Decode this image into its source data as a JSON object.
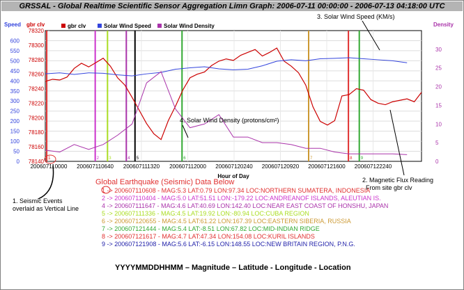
{
  "title": "GRSSAL - Global Realtime Scientific Sensor Aggregation Limn Graph: 2006-07-11 00:00:00 - 2006-07-13 04:18:00 UTC",
  "colors": {
    "background": "#ffffff",
    "titlebar": "#b4b4b4",
    "gbr": "#cc0000",
    "speed": "#3344dd",
    "density": "#aa33aa",
    "annotation_red": "#e03030"
  },
  "chart_data": {
    "type": "line",
    "xlabel": "Hour of Day",
    "x_ticks": [
      "200607110000",
      "200607110640",
      "200607111320",
      "200607112000",
      "200607120240",
      "200607120920",
      "200607121600",
      "200607122240"
    ],
    "axes": {
      "speed": {
        "label": "Speed",
        "ylim": [
          0,
          650
        ],
        "ticks": [
          "0",
          "50",
          "100",
          "150",
          "200",
          "250",
          "300",
          "350",
          "400",
          "450",
          "500",
          "550",
          "600"
        ]
      },
      "gbr": {
        "label": "gbr clv",
        "ylim": [
          78140,
          78320
        ],
        "ticks": [
          "78140",
          "78160",
          "78180",
          "78200",
          "78220",
          "78240",
          "78260",
          "78280",
          "78300",
          "78320"
        ]
      },
      "density": {
        "label": "Density",
        "ylim": [
          0,
          35
        ],
        "ticks": [
          "0",
          "5",
          "10",
          "15",
          "20",
          "25",
          "30"
        ]
      }
    },
    "legend": [
      "gbr clv",
      "Solar Wind Speed",
      "Solar Wind Density"
    ],
    "series": [
      {
        "name": "gbr clv",
        "axis": "gbr",
        "x": [
          0,
          1,
          2,
          3,
          4,
          5,
          6,
          7,
          8,
          9,
          10,
          11,
          12,
          13,
          14,
          15,
          16,
          17,
          18,
          19,
          20,
          21,
          22,
          23,
          24,
          25,
          26,
          27,
          28,
          29,
          30,
          31,
          32,
          33,
          34,
          35,
          36,
          37,
          38,
          39,
          40,
          41,
          42,
          43,
          44,
          45,
          46,
          47,
          48,
          49,
          50,
          51,
          52
        ],
        "values": [
          78250,
          78253,
          78252,
          78256,
          78268,
          78275,
          78270,
          78276,
          78282,
          78271,
          78255,
          78245,
          78228,
          78210,
          78192,
          78178,
          78170,
          78196,
          78216,
          78238,
          78255,
          78260,
          78263,
          78272,
          78278,
          78281,
          78279,
          78286,
          78290,
          78294,
          78285,
          78290,
          78296,
          78278,
          78271,
          78262,
          78245,
          78215,
          78195,
          78190,
          78196,
          78230,
          78232,
          78240,
          78238,
          78225,
          78220,
          78218,
          78222,
          78224,
          78226,
          78222,
          78235
        ]
      },
      {
        "name": "Solar Wind Speed",
        "axis": "speed",
        "x": [
          0,
          2,
          4,
          6,
          8,
          10,
          12,
          14,
          16,
          18,
          20,
          22,
          24,
          26,
          28,
          30,
          32,
          34,
          36,
          38,
          40,
          42,
          44,
          46,
          48,
          50
        ],
        "values": [
          435,
          440,
          432,
          440,
          438,
          430,
          425,
          435,
          442,
          458,
          465,
          470,
          460,
          455,
          458,
          475,
          498,
          505,
          500,
          510,
          512,
          515,
          510,
          505,
          500,
          490
        ]
      },
      {
        "name": "Solar Wind Density",
        "axis": "density",
        "x": [
          0,
          2,
          4,
          6,
          8,
          10,
          12,
          14,
          16,
          18,
          20,
          22,
          24,
          26,
          28,
          30,
          32,
          34,
          36,
          38,
          40,
          42,
          44,
          46,
          48,
          50
        ],
        "values": [
          3,
          2.5,
          4.5,
          3.2,
          4.5,
          7,
          10,
          21,
          24,
          14,
          9,
          10,
          12.5,
          6.5,
          6.5,
          5,
          5,
          4.5,
          3.5,
          3.5,
          2.5,
          2,
          2,
          2,
          2,
          1.8
        ]
      }
    ],
    "seismic_events": [
      {
        "x": 0.2,
        "id": "1",
        "color": "#e03030"
      },
      {
        "x": 6.9,
        "id": "2",
        "color": "#cc33cc"
      },
      {
        "x": 8.6,
        "id": "3",
        "color": "#aadd22"
      },
      {
        "x": 11.2,
        "id": "4",
        "color": "#aa33aa"
      },
      {
        "x": 12.4,
        "id": "5",
        "color": "#000000"
      },
      {
        "x": 18.9,
        "id": "6",
        "color": "#33aa33"
      },
      {
        "x": 36.4,
        "id": "7",
        "color": "#cc9933"
      },
      {
        "x": 41.9,
        "id": "8",
        "color": "#e03030"
      },
      {
        "x": 43.4,
        "id": "9",
        "color": "#33aa33"
      }
    ],
    "annotations": [
      "3. Solar Wind Speed (KM/s)",
      "4. Solar Wind Density (protons/cm²)",
      "2. Magnetic Flux Reading",
      "From site gbr clv",
      "1. Seismic Events",
      "overlaid as Vertical Line"
    ]
  },
  "quakes": {
    "heading": "Global Earthquake (Seismic) Data Below",
    "caption": "YYYYMMDDHHMM – Magnitude – Latitude - Longitude - Location",
    "items": [
      {
        "text": "1 -> 200607110608 - MAG:5.3 LAT:0.79 LON:97.34 LOC:NORTHERN SUMATERA, INDONESIA",
        "color": "#e03030"
      },
      {
        "text": "2 -> 200607110404 - MAG:5.0 LAT:51.51 LON:-179.22 LOC:ANDREANOF ISLANDS, ALEUTIAN IS.",
        "color": "#cc33cc"
      },
      {
        "text": "4 -> 200607111647 - MAG:4.6 LAT:40.69 LON:142.40 LOC:NEAR EAST COAST OF HONSHU, JAPAN",
        "color": "#aa33aa"
      },
      {
        "text": "5 -> 200607111336 - MAG:4.5 LAT:19.92 LON:-80.94 LOC:CUBA REGION",
        "color": "#aadd22"
      },
      {
        "text": "6 -> 200607120655 - MAG:4.5 LAT:61.22 LON:167.39 LOC:EASTERN SIBERIA, RUSSIA",
        "color": "#cc9933"
      },
      {
        "text": "7 -> 200607121444 - MAG:5.4 LAT:-8.51 LON:67.82 LOC:MID-INDIAN RIDGE",
        "color": "#33aa33"
      },
      {
        "text": "8 -> 200607121617 - MAG:4.7 LAT:47.34 LON:154.08 LOC:KURIL ISLANDS",
        "color": "#e03030"
      },
      {
        "text": "9 -> 200607121908 - MAG:5.6 LAT:-6.15 LON:148.55 LOC:NEW BRITAIN REGION, P.N.G.",
        "color": "#2222aa"
      }
    ]
  }
}
